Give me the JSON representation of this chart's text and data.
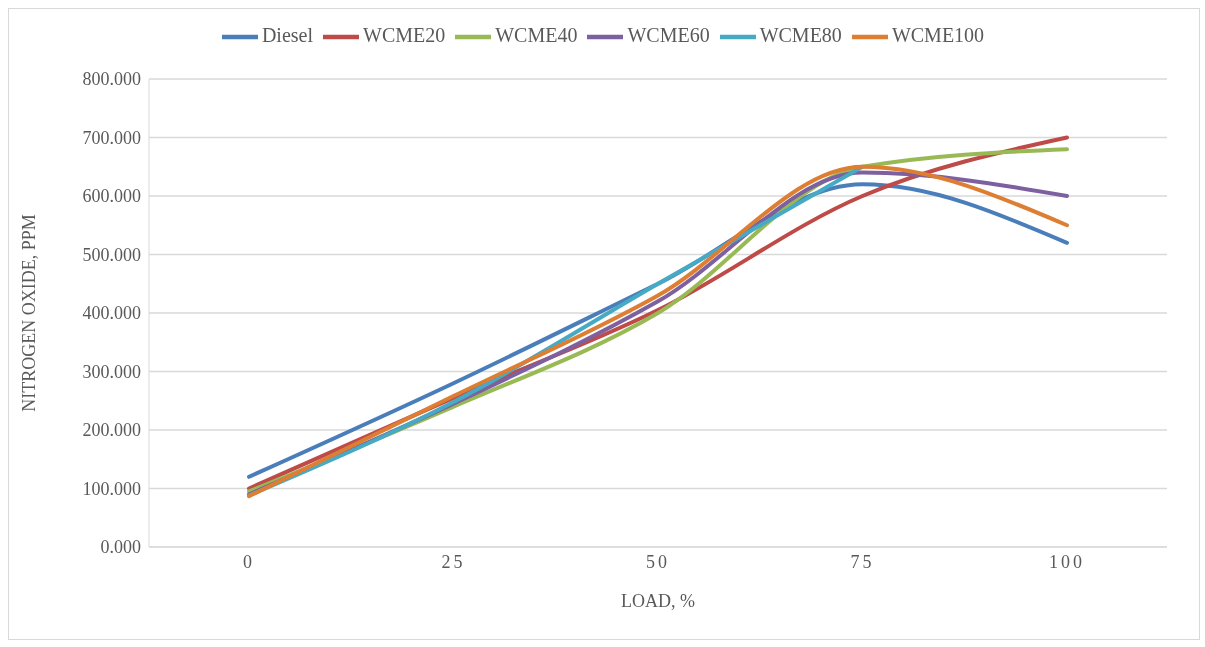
{
  "chart_data": {
    "type": "line",
    "xlabel": "LOAD, %",
    "ylabel": "NITROGEN OXIDE, PPM",
    "categories": [
      "0",
      "25",
      "50",
      "75",
      "100"
    ],
    "series": [
      {
        "name": "Diesel",
        "color": "#4a7ebb",
        "values": [
          120,
          280,
          450,
          620,
          520
        ]
      },
      {
        "name": "WCME20",
        "color": "#be4b48",
        "values": [
          100,
          255,
          405,
          600,
          700
        ]
      },
      {
        "name": "WCME40",
        "color": "#98b954",
        "values": [
          95,
          240,
          400,
          650,
          680
        ]
      },
      {
        "name": "WCME60",
        "color": "#7d60a0",
        "values": [
          90,
          245,
          420,
          640,
          600
        ]
      },
      {
        "name": "WCME80",
        "color": "#46aac5",
        "values": [
          88,
          248,
          450,
          650,
          null
        ]
      },
      {
        "name": "WCME100",
        "color": "#dd7e33",
        "values": [
          87,
          258,
          430,
          650,
          550
        ]
      }
    ],
    "ylim": [
      0,
      800
    ],
    "yticks": [
      {
        "value": 0,
        "label": "0.000"
      },
      {
        "value": 100,
        "label": "100.000"
      },
      {
        "value": 200,
        "label": "200.000"
      },
      {
        "value": 300,
        "label": "300.000"
      },
      {
        "value": 400,
        "label": "400.000"
      },
      {
        "value": 500,
        "label": "500.000"
      },
      {
        "value": 600,
        "label": "600.000"
      },
      {
        "value": 700,
        "label": "700.000"
      },
      {
        "value": 800,
        "label": "800.000"
      }
    ],
    "grid": "y",
    "legend": "top",
    "marker": "none",
    "line_style": "solid"
  }
}
